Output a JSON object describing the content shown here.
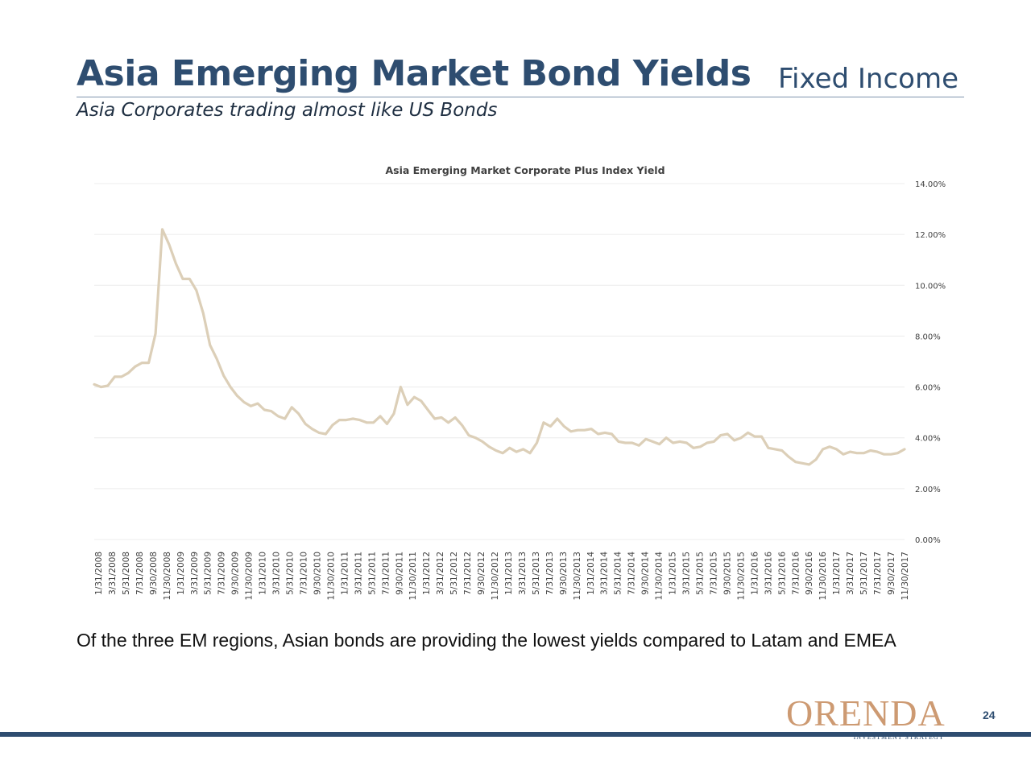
{
  "header": {
    "title": "Asia Emerging Market Bond Yields",
    "section": "Fixed Income",
    "subtitle": "Asia Corporates trading almost like US Bonds"
  },
  "body": {
    "text": "Of the three EM regions, Asian bonds are providing the lowest yields compared to Latam and EMEA"
  },
  "footer": {
    "logo": "ORENDA",
    "logo_tagline": "INVESTMENT STRATEGY",
    "page_number": "24"
  },
  "colors": {
    "title": "#2e4d70",
    "line": "#dccfb8",
    "logo": "#cd9a72",
    "footer_bar": "#2e4d70"
  },
  "chart_data": {
    "type": "line",
    "title": "Asia Emerging Market Corporate Plus Index Yield",
    "xlabel": "",
    "ylabel": "",
    "ylim": [
      0,
      14
    ],
    "y_tick_labels": [
      "0.00%",
      "2.00%",
      "4.00%",
      "6.00%",
      "8.00%",
      "10.00%",
      "12.00%",
      "14.00%"
    ],
    "y_axis_position": "right",
    "grid": true,
    "x_tick_labels": [
      "1/31/2008",
      "3/31/2008",
      "5/31/2008",
      "7/31/2008",
      "9/30/2008",
      "11/30/2008",
      "1/31/2009",
      "3/31/2009",
      "5/31/2009",
      "7/31/2009",
      "9/30/2009",
      "11/30/2009",
      "1/31/2010",
      "3/31/2010",
      "5/31/2010",
      "7/31/2010",
      "9/30/2010",
      "11/30/2010",
      "1/31/2011",
      "3/31/2011",
      "5/31/2011",
      "7/31/2011",
      "9/30/2011",
      "11/30/2011",
      "1/31/2012",
      "3/31/2012",
      "5/31/2012",
      "7/31/2012",
      "9/30/2012",
      "11/30/2012",
      "1/31/2013",
      "3/31/2013",
      "5/31/2013",
      "7/31/2013",
      "9/30/2013",
      "11/30/2013",
      "1/31/2014",
      "3/31/2014",
      "5/31/2014",
      "7/31/2014",
      "9/30/2014",
      "11/30/2014",
      "1/31/2015",
      "3/31/2015",
      "5/31/2015",
      "7/31/2015",
      "9/30/2015",
      "11/30/2015",
      "1/31/2016",
      "3/31/2016",
      "5/31/2016",
      "7/31/2016",
      "9/30/2016",
      "11/30/2016",
      "1/31/2017",
      "3/31/2017",
      "5/31/2017",
      "7/31/2017",
      "9/30/2017",
      "11/30/2017"
    ],
    "series": [
      {
        "values": [
          6.1,
          6.0,
          6.05,
          6.4,
          6.4,
          6.55,
          6.8,
          6.95,
          6.95,
          8.1,
          12.2,
          11.6,
          10.85,
          10.25,
          10.25,
          9.8,
          8.9,
          7.65,
          7.1,
          6.45,
          6.0,
          5.65,
          5.4,
          5.25,
          5.35,
          5.1,
          5.05,
          4.85,
          4.75,
          5.2,
          4.95,
          4.55,
          4.35,
          4.2,
          4.15,
          4.5,
          4.7,
          4.7,
          4.75,
          4.7,
          4.6,
          4.6,
          4.85,
          4.55,
          4.95,
          6.0,
          5.3,
          5.6,
          5.45,
          5.1,
          4.75,
          4.8,
          4.6,
          4.8,
          4.5,
          4.1,
          4.0,
          3.85,
          3.65,
          3.5,
          3.4,
          3.6,
          3.45,
          3.55,
          3.4,
          3.8,
          4.6,
          4.45,
          4.75,
          4.45,
          4.25,
          4.3,
          4.3,
          4.35,
          4.15,
          4.2,
          4.15,
          3.85,
          3.8,
          3.8,
          3.7,
          3.95,
          3.85,
          3.75,
          4.0,
          3.8,
          3.85,
          3.8,
          3.6,
          3.65,
          3.8,
          3.85,
          4.1,
          4.15,
          3.9,
          4.0,
          4.2,
          4.05,
          4.05,
          3.6,
          3.55,
          3.5,
          3.25,
          3.05,
          3.0,
          2.95,
          3.15,
          3.55,
          3.65,
          3.55,
          3.35,
          3.45,
          3.4,
          3.4,
          3.5,
          3.45,
          3.35,
          3.35,
          3.4,
          3.55
        ]
      }
    ]
  }
}
